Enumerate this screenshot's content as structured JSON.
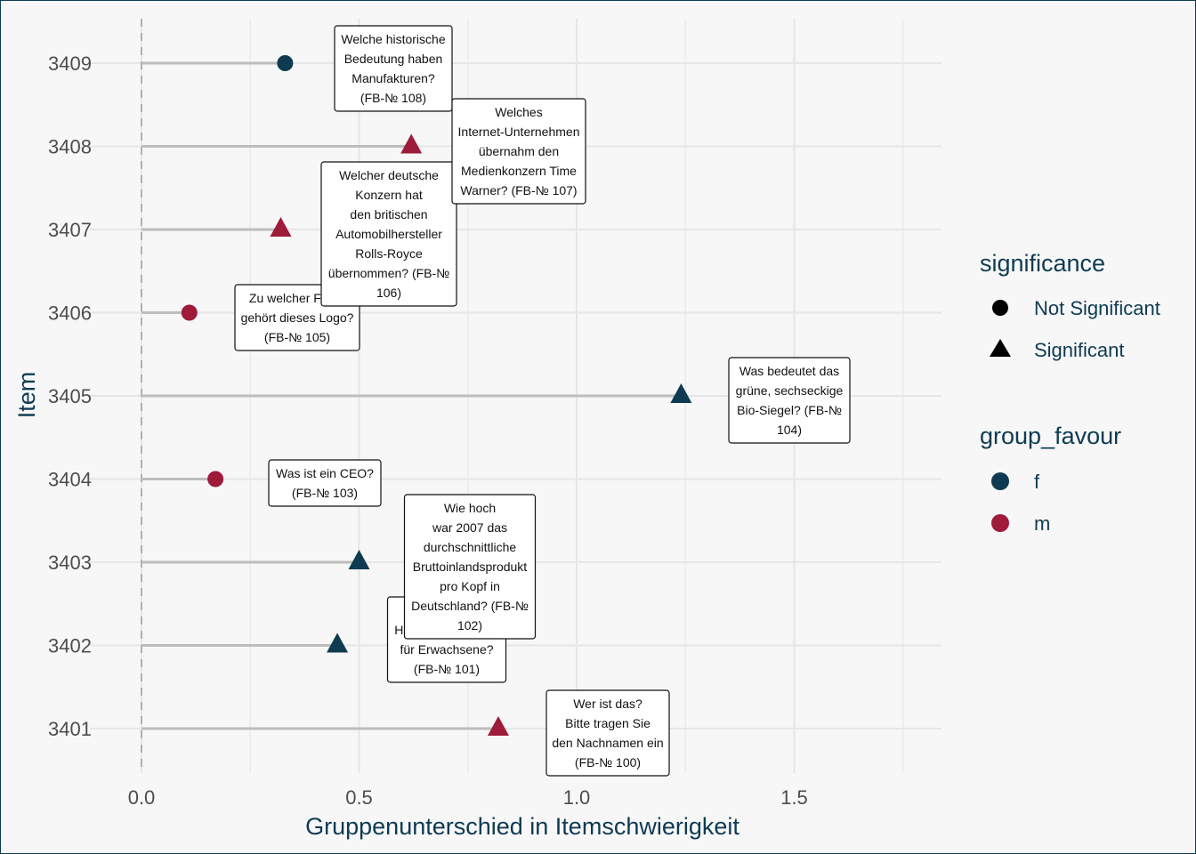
{
  "chart_data": {
    "type": "scatter",
    "xlabel": "Gruppenunterschied in Itemschwierigkeit",
    "ylabel": "Item",
    "xlim": [
      -0.12,
      1.85
    ],
    "x_ticks": [
      "0.0",
      "0.5",
      "1.0",
      "1.5"
    ],
    "x_tick_values": [
      0,
      0.5,
      1.0,
      1.5
    ],
    "reference_line_x": 0,
    "grid": true,
    "legend_position": "right",
    "categories": [
      "3401",
      "3402",
      "3403",
      "3404",
      "3405",
      "3406",
      "3407",
      "3408",
      "3409"
    ],
    "points": [
      {
        "item": "3401",
        "x": 0.82,
        "significance": "Significant",
        "group_favour": "m",
        "label": [
          "Wer ist das?",
          "Bitte tragen Sie",
          "den Nachnamen ein",
          "(FB-№ 100)"
        ]
      },
      {
        "item": "3402",
        "x": 0.45,
        "significance": "Significant",
        "group_favour": "f",
        "label": [
          "Hartz-IV-Regelsatz",
          "für Erwachsene?",
          "(FB-№ 101)"
        ]
      },
      {
        "item": "3403",
        "x": 0.5,
        "significance": "Significant",
        "group_favour": "f",
        "label": [
          "Wie hoch",
          "war 2007 das",
          "durchschnittliche",
          "Bruttoinlandsprodukt",
          "pro Kopf in",
          "Deutschland? (FB-№",
          "102)"
        ]
      },
      {
        "item": "3404",
        "x": 0.17,
        "significance": "Not Significant",
        "group_favour": "m",
        "label": [
          "Was ist ein CEO?",
          "(FB-№ 103)"
        ]
      },
      {
        "item": "3405",
        "x": 1.24,
        "significance": "Significant",
        "group_favour": "f",
        "label": [
          "Was bedeutet das",
          "grüne, sechseckige",
          "Bio-Siegel? (FB-№",
          "104)"
        ]
      },
      {
        "item": "3406",
        "x": 0.11,
        "significance": "Not Significant",
        "group_favour": "m",
        "label": [
          "Zu welcher Firma",
          "gehört dieses Logo?",
          "(FB-№ 105)"
        ]
      },
      {
        "item": "3407",
        "x": 0.32,
        "significance": "Significant",
        "group_favour": "m",
        "label": [
          "Welcher deutsche",
          "Konzern hat",
          "den britischen",
          "Automobilhersteller",
          "Rolls-Royce",
          "übernommen? (FB-№",
          "106)"
        ]
      },
      {
        "item": "3408",
        "x": 0.62,
        "significance": "Significant",
        "group_favour": "m",
        "label": [
          "Welches",
          "Internet-Unternehmen",
          "übernahm den",
          "Medienkonzern Time",
          "Warner? (FB-№ 107)"
        ]
      },
      {
        "item": "3409",
        "x": 0.33,
        "significance": "Not Significant",
        "group_favour": "f",
        "label": [
          "Welche historische",
          "Bedeutung haben",
          "Manufakturen?",
          "(FB-№ 108)"
        ]
      }
    ],
    "legend": {
      "significance": {
        "title": "significance",
        "entries": [
          {
            "label": "Not Significant",
            "shape": "circle"
          },
          {
            "label": "Significant",
            "shape": "triangle"
          }
        ]
      },
      "group_favour": {
        "title": "group_favour",
        "entries": [
          {
            "label": "f",
            "color": "#0e3b52"
          },
          {
            "label": "m",
            "color": "#9e1b3a"
          }
        ]
      }
    },
    "colors": {
      "f": "#0e3b52",
      "m": "#9e1b3a",
      "segment": "#bdbdbd",
      "grid": "#e6e6e6",
      "zero_line": "#b0b0b0"
    }
  }
}
